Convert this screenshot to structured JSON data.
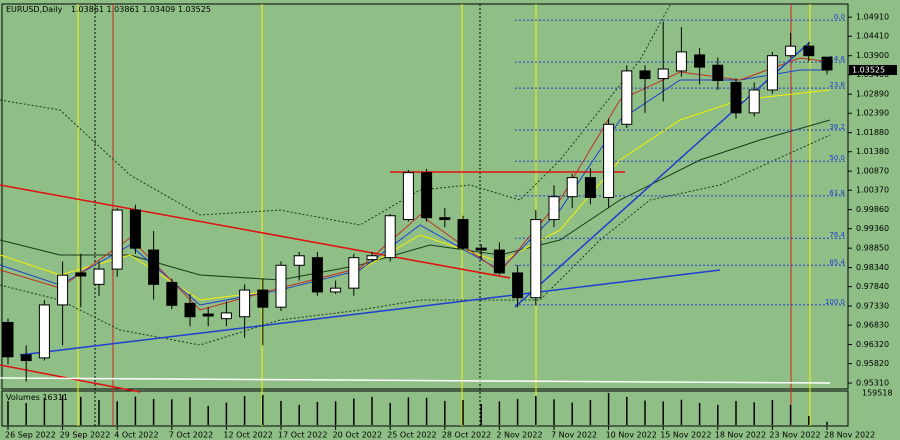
{
  "chart_data": {
    "type": "candlestick",
    "title": "EURUSD,Daily",
    "categories": [
      "26 Sep 2022",
      null,
      null,
      "29 Sep 2022",
      null,
      null,
      "4 Oct 2022",
      null,
      null,
      "7 Oct 2022",
      null,
      null,
      "12 Oct 2022",
      null,
      null,
      "17 Oct 2022",
      null,
      null,
      "20 Oct 2022",
      null,
      null,
      "25 Oct 2022",
      null,
      null,
      "28 Oct 2022",
      null,
      null,
      "2 Nov 2022",
      null,
      null,
      "7 Nov 2022",
      null,
      null,
      "10 Nov 2022",
      null,
      null,
      "15 Nov 2022",
      null,
      null,
      "18 Nov 2022",
      null,
      null,
      "23 Nov 2022",
      null,
      null,
      "28 Nov 2022"
    ],
    "open": [
      0.969,
      0.9605,
      0.9597,
      0.9736,
      0.982,
      0.979,
      0.983,
      0.9985,
      0.988,
      0.9795,
      0.974,
      0.9712,
      0.97,
      0.9705,
      0.9775,
      0.973,
      0.984,
      0.986,
      0.977,
      0.978,
      0.9855,
      0.986,
      0.996,
      1.0083,
      0.9965,
      0.996,
      0.9885,
      0.988,
      0.982,
      0.9755,
      0.996,
      1.002,
      1.007,
      1.0018,
      1.021,
      1.035,
      1.033,
      1.035,
      1.0392,
      1.0365,
      1.032,
      1.024,
      1.03,
      1.039,
      1.0415,
      1.03861
    ],
    "high": [
      0.97,
      0.963,
      0.9749,
      0.985,
      0.987,
      0.985,
      0.999,
      0.9999,
      0.993,
      0.9805,
      0.9765,
      0.973,
      0.9745,
      0.979,
      0.9805,
      0.985,
      0.9875,
      0.9875,
      0.98,
      0.987,
      0.9875,
      0.9975,
      1.009,
      1.0093,
      0.999,
      0.997,
      0.9895,
      0.99,
      0.984,
      0.9985,
      1.005,
      1.008,
      1.0095,
      1.0225,
      1.0365,
      1.0365,
      1.048,
      1.0465,
      1.041,
      1.0385,
      1.033,
      1.032,
      1.04,
      1.045,
      1.0425,
      1.03861
    ],
    "low": [
      0.958,
      0.9535,
      0.959,
      0.963,
      0.973,
      0.976,
      0.981,
      0.987,
      0.975,
      0.9725,
      0.968,
      0.968,
      0.968,
      0.965,
      0.963,
      0.972,
      0.98,
      0.976,
      0.9765,
      0.976,
      0.985,
      0.985,
      0.9955,
      0.9955,
      0.994,
      0.988,
      0.9855,
      0.9815,
      0.973,
      0.9735,
      0.994,
      0.999,
      1.0,
      0.999,
      1.02,
      1.024,
      1.027,
      1.0335,
      1.0315,
      1.03,
      1.0225,
      1.023,
      1.029,
      1.0385,
      1.0375,
      1.03409
    ],
    "close": [
      0.96,
      0.959,
      0.9736,
      0.9814,
      0.9812,
      0.983,
      0.9985,
      0.9885,
      0.979,
      0.9735,
      0.9705,
      0.9707,
      0.9715,
      0.9775,
      0.973,
      0.984,
      0.9865,
      0.977,
      0.978,
      0.986,
      0.9865,
      0.997,
      1.0083,
      0.9965,
      0.996,
      0.9885,
      0.988,
      0.982,
      0.9755,
      0.996,
      1.002,
      1.007,
      1.0018,
      1.021,
      1.035,
      1.033,
      1.0355,
      1.04,
      1.036,
      1.0325,
      1.024,
      1.03,
      1.039,
      1.0415,
      1.039,
      1.03525
    ],
    "up_color": "#ffffff",
    "down_color": "#000000",
    "ylim": [
      0.9518,
      1.0523
    ],
    "yticks": [
      {
        "value": 1.0491,
        "label": "1.04910"
      },
      {
        "value": 1.0441,
        "label": "1.04410"
      },
      {
        "value": 1.039,
        "label": "1.03900"
      },
      {
        "value": 1.034,
        "label": "1.03400"
      },
      {
        "value": 1.0289,
        "label": "1.02890"
      },
      {
        "value": 1.0239,
        "label": "1.02390"
      },
      {
        "value": 1.0188,
        "label": "1.01880"
      },
      {
        "value": 1.0138,
        "label": "1.01380"
      },
      {
        "value": 1.0087,
        "label": "1.00870"
      },
      {
        "value": 1.0037,
        "label": "1.00370"
      },
      {
        "value": 0.9986,
        "label": "0.99860"
      },
      {
        "value": 0.9936,
        "label": "0.99360"
      },
      {
        "value": 0.9885,
        "label": "0.98850"
      },
      {
        "value": 0.9834,
        "label": "0.98340"
      },
      {
        "value": 0.9784,
        "label": "0.97840"
      },
      {
        "value": 0.9733,
        "label": "0.97330"
      },
      {
        "value": 0.9683,
        "label": "0.96830"
      },
      {
        "value": 0.9632,
        "label": "0.96320"
      },
      {
        "value": 0.9582,
        "label": "0.95820"
      },
      {
        "value": 0.9531,
        "label": "0.95310"
      }
    ],
    "fib": {
      "labels": [
        "0.0",
        "14.6",
        "23.6",
        "38.2",
        "50.0",
        "61.8",
        "76.4",
        "85.4",
        "100.0"
      ],
      "prices": [
        1.0483,
        1.0373,
        1.0305,
        1.0195,
        1.0113,
        1.0022,
        0.9911,
        0.984,
        0.9736
      ],
      "color": "#1f3fd0"
    },
    "volume": {
      "name": "Volumes",
      "color": "#000000",
      "values": [
        120000,
        110000,
        135000,
        150000,
        140000,
        125000,
        118000,
        142000,
        130000,
        128000,
        138000,
        95000,
        112000,
        145000,
        150000,
        120000,
        100000,
        115000,
        118000,
        132000,
        140000,
        110000,
        138000,
        136000,
        120000,
        125000,
        105000,
        118000,
        130000,
        145000,
        128000,
        112000,
        125000,
        159518,
        140000,
        122000,
        118000,
        126000,
        110000,
        100000,
        120000,
        113000,
        125000,
        100000,
        45000,
        16311
      ],
      "ylim": [
        0,
        159518
      ],
      "yticks": [
        159518
      ]
    }
  }
}
